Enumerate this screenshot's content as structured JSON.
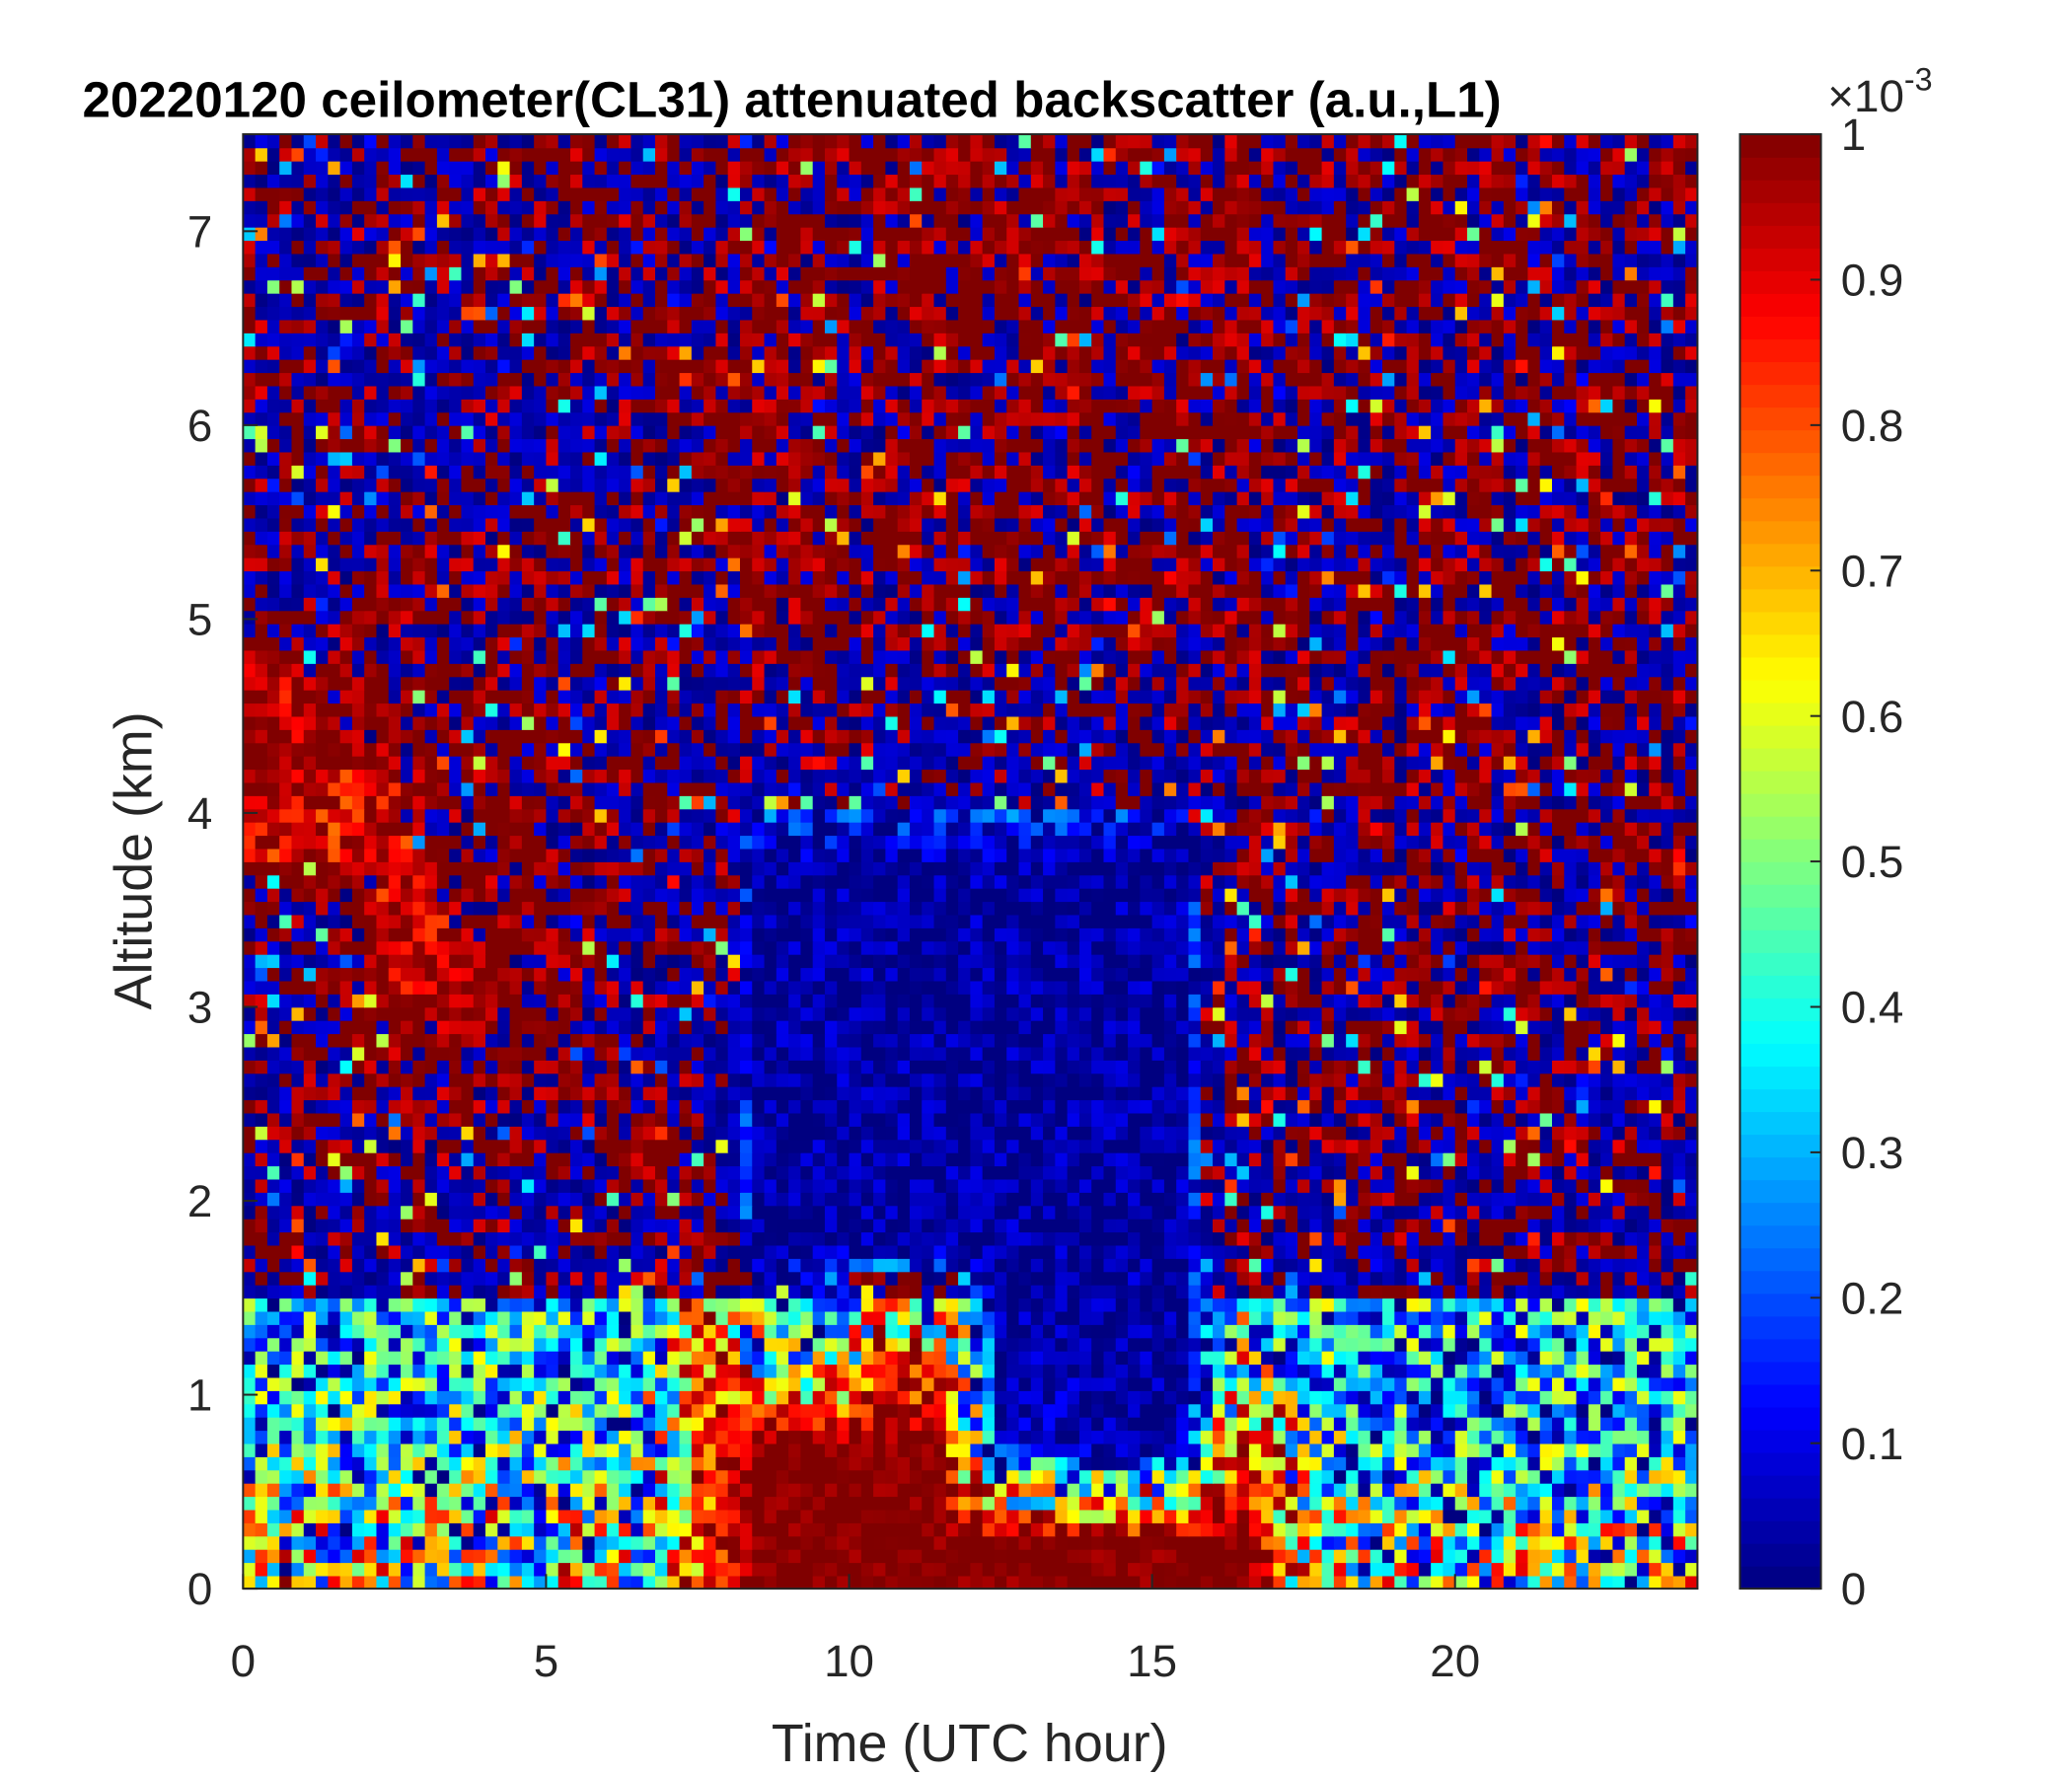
{
  "chart_data": {
    "type": "heatmap",
    "title": "20220120 ceilometer(CL31) attenuated backscatter (a.u.,L1)",
    "xlabel": "Time (UTC hour)",
    "ylabel": "Altitude (km)",
    "xlim": [
      0,
      24
    ],
    "ylim": [
      0,
      7.5
    ],
    "xticks": [
      "0",
      "5",
      "10",
      "15",
      "20"
    ],
    "yticks": [
      "0",
      "1",
      "2",
      "3",
      "4",
      "5",
      "6",
      "7"
    ],
    "colormap": "jet",
    "colorbar": {
      "clim": [
        0,
        1
      ],
      "exponent_label": "×10",
      "exponent": "-3",
      "ticks": [
        "0",
        "0.1",
        "0.2",
        "0.3",
        "0.4",
        "0.5",
        "0.6",
        "0.7",
        "0.8",
        "0.9",
        "1"
      ]
    },
    "grid": false,
    "x_bins_hours": [
      0,
      1,
      2,
      3,
      4,
      5,
      6,
      7,
      8,
      9,
      10,
      11,
      12,
      13,
      14,
      15,
      16,
      17,
      18,
      19,
      20,
      21,
      22,
      23
    ],
    "y_bins_km": [
      0,
      0.5,
      1,
      1.5,
      2,
      2.5,
      3,
      3.5,
      4,
      4.5,
      5,
      5.5,
      6,
      6.5,
      7
    ],
    "values_note_units": "×10^-3 a.u., mean per bin (approx.)",
    "values": [
      [
        0.5,
        0.5,
        0.5,
        0.5,
        0.5,
        0.5,
        0.5,
        0.8,
        1,
        1,
        1,
        1,
        1,
        1,
        1,
        1,
        1,
        0.6,
        0.45,
        0.45,
        0.45,
        0.45,
        0.45,
        0.45
      ],
      [
        0.35,
        0.35,
        0.35,
        0.35,
        0.35,
        0.35,
        0.35,
        0.8,
        1,
        1,
        1,
        1,
        0.05,
        0.05,
        0.05,
        0.05,
        0.9,
        0.4,
        0.3,
        0.3,
        0.3,
        0.3,
        0.3,
        0.3
      ],
      [
        0.3,
        0.3,
        0.3,
        0.3,
        0.3,
        0.3,
        0.3,
        0.8,
        0.5,
        0.3,
        0.8,
        0.7,
        0.03,
        0.03,
        0.03,
        0.03,
        0.4,
        0.3,
        0.3,
        0.3,
        0.3,
        0.3,
        0.3,
        0.3
      ],
      [
        0.3,
        0.3,
        0.3,
        0.3,
        0.3,
        0.3,
        0.3,
        0.7,
        0.03,
        0.03,
        0.03,
        0.03,
        0.03,
        0.03,
        0.03,
        0.03,
        0.4,
        0.35,
        0.35,
        0.35,
        0.35,
        0.35,
        0.35,
        0.35
      ],
      [
        0.3,
        0.3,
        0.3,
        0.3,
        0.3,
        0.3,
        0.7,
        0.5,
        0.03,
        0.03,
        0.03,
        0.03,
        0.03,
        0.03,
        0.03,
        0.03,
        0.45,
        0.45,
        0.8,
        0.4,
        0.4,
        0.4,
        0.4,
        0.4
      ],
      [
        0.3,
        0.35,
        0.8,
        0.9,
        0.6,
        0.8,
        0.4,
        0.35,
        0.03,
        0.03,
        0.03,
        0.03,
        0.03,
        0.03,
        0.03,
        0.03,
        0.45,
        0.45,
        0.45,
        0.45,
        0.45,
        0.45,
        0.45,
        0.45
      ],
      [
        0.35,
        0.5,
        0.95,
        0.95,
        0.8,
        0.7,
        0.35,
        0.35,
        0.03,
        0.03,
        0.03,
        0.03,
        0.03,
        0.03,
        0.03,
        0.03,
        0.5,
        0.5,
        0.5,
        0.5,
        0.5,
        0.5,
        0.5,
        0.5
      ],
      [
        0.9,
        0.9,
        0.95,
        0.8,
        0.85,
        0.4,
        0.35,
        0.4,
        0.03,
        0.03,
        0.03,
        0.03,
        0.03,
        0.03,
        0.03,
        0.03,
        0.5,
        0.5,
        0.5,
        0.5,
        0.5,
        0.5,
        0.5,
        0.5
      ],
      [
        1,
        0.9,
        0.9,
        0.6,
        0.8,
        0.4,
        0.4,
        0.45,
        0.25,
        0.25,
        0.25,
        0.25,
        0.25,
        0.25,
        0.25,
        0.25,
        0.5,
        0.5,
        0.5,
        0.5,
        0.5,
        0.5,
        0.5,
        0.5
      ],
      [
        0.95,
        0.7,
        0.6,
        0.45,
        0.5,
        0.4,
        0.45,
        0.45,
        0.5,
        0.45,
        0.45,
        0.45,
        0.45,
        0.45,
        0.45,
        0.5,
        0.5,
        0.5,
        0.5,
        0.5,
        0.5,
        0.5,
        0.5,
        0.5
      ],
      [
        0.35,
        0.35,
        0.35,
        0.35,
        0.45,
        0.45,
        0.45,
        0.45,
        0.6,
        0.6,
        0.6,
        0.6,
        0.6,
        0.6,
        0.6,
        0.6,
        0.6,
        0.5,
        0.5,
        0.5,
        0.5,
        0.5,
        0.5,
        0.5
      ],
      [
        0.35,
        0.35,
        0.35,
        0.35,
        0.45,
        0.45,
        0.45,
        0.45,
        0.6,
        0.6,
        0.6,
        0.6,
        0.6,
        0.6,
        0.6,
        0.6,
        0.6,
        0.5,
        0.5,
        0.5,
        0.5,
        0.5,
        0.5,
        0.5
      ],
      [
        0.35,
        0.35,
        0.35,
        0.35,
        0.45,
        0.45,
        0.45,
        0.45,
        0.6,
        0.6,
        0.6,
        0.6,
        0.6,
        0.6,
        0.6,
        0.6,
        0.6,
        0.5,
        0.5,
        0.5,
        0.5,
        0.5,
        0.5,
        0.5
      ],
      [
        0.35,
        0.35,
        0.35,
        0.35,
        0.45,
        0.45,
        0.45,
        0.45,
        0.6,
        0.6,
        0.65,
        0.65,
        0.65,
        0.65,
        0.65,
        0.65,
        0.6,
        0.5,
        0.5,
        0.5,
        0.5,
        0.5,
        0.5,
        0.5
      ],
      [
        0.35,
        0.35,
        0.35,
        0.35,
        0.45,
        0.45,
        0.45,
        0.45,
        0.6,
        0.6,
        0.65,
        0.65,
        0.65,
        0.65,
        0.65,
        0.65,
        0.6,
        0.5,
        0.5,
        0.5,
        0.5,
        0.5,
        0.5,
        0.5
      ]
    ]
  }
}
